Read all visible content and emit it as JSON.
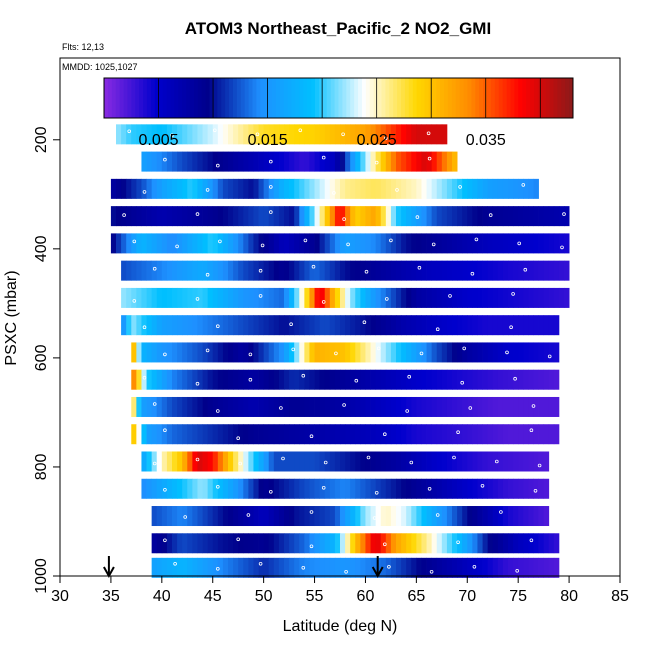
{
  "chart_data": {
    "type": "heatmap",
    "title": "ATOM3 Northeast_Pacific_2 NO2_GMI",
    "flights_label": "Flts: 12,13",
    "mmdd_label": "MMDD: 1025,1027",
    "xlabel": "Latitude (deg N)",
    "ylabel": "PSXC (mbar)",
    "xlim": [
      30,
      85
    ],
    "ylim": [
      1000,
      50
    ],
    "y_reversed": true,
    "x_ticks": [
      30,
      35,
      40,
      45,
      50,
      55,
      60,
      65,
      70,
      75,
      80,
      85
    ],
    "y_ticks": [
      200,
      400,
      600,
      800,
      1000
    ],
    "colorbar": {
      "range": [
        0.0,
        0.043
      ],
      "ticks": [
        0.005,
        0.015,
        0.025,
        0.035
      ],
      "tick_labels": [
        "0.005",
        "0.015",
        "0.025",
        "0.035"
      ],
      "colors": [
        "#8a2be2",
        "#0000cd",
        "#00008b",
        "#1e90ff",
        "#00bfff",
        "#ffffff",
        "#ffd700",
        "#ff8c00",
        "#ff0000",
        "#8b1a1a"
      ]
    },
    "arrows_lat": [
      34.8,
      61.2
    ],
    "grid": false,
    "rows": [
      {
        "p": 190,
        "lat": [
          35.5,
          68
        ],
        "k": [
          [
            35.5,
            0.022
          ],
          [
            37,
            0.02
          ],
          [
            40,
            0.019
          ],
          [
            45,
            0.023
          ],
          [
            50,
            0.028
          ],
          [
            55,
            0.029
          ],
          [
            60,
            0.032
          ],
          [
            63,
            0.037
          ],
          [
            65,
            0.04
          ],
          [
            68,
            0.04
          ]
        ]
      },
      {
        "p": 240,
        "lat": [
          38,
          69
        ],
        "k": [
          [
            38,
            0.016
          ],
          [
            42,
            0.012
          ],
          [
            46,
            0.009
          ],
          [
            50,
            0.006
          ],
          [
            54,
            0.003
          ],
          [
            57,
            0.006
          ],
          [
            60,
            0.022
          ],
          [
            63,
            0.035
          ],
          [
            66,
            0.04
          ],
          [
            69,
            0.03
          ]
        ]
      },
      {
        "p": 290,
        "lat": [
          35,
          77
        ],
        "k": [
          [
            35,
            0.008
          ],
          [
            38,
            0.012
          ],
          [
            40,
            0.016
          ],
          [
            43,
            0.02
          ],
          [
            46,
            0.012
          ],
          [
            49,
            0.01
          ],
          [
            52,
            0.018
          ],
          [
            55,
            0.022
          ],
          [
            58,
            0.026
          ],
          [
            61,
            0.027
          ],
          [
            65,
            0.025
          ],
          [
            69,
            0.02
          ],
          [
            72,
            0.016
          ],
          [
            77,
            0.014
          ]
        ]
      },
      {
        "p": 340,
        "lat": [
          35,
          80
        ],
        "k": [
          [
            35,
            0.01
          ],
          [
            40,
            0.007
          ],
          [
            45,
            0.009
          ],
          [
            50,
            0.012
          ],
          [
            53,
            0.01
          ],
          [
            56,
            0.028
          ],
          [
            57.5,
            0.039
          ],
          [
            59,
            0.029
          ],
          [
            61,
            0.032
          ],
          [
            63,
            0.02
          ],
          [
            67,
            0.012
          ],
          [
            72,
            0.009
          ],
          [
            76,
            0.008
          ],
          [
            80,
            0.007
          ]
        ]
      },
      {
        "p": 390,
        "lat": [
          35,
          80
        ],
        "k": [
          [
            35,
            0.009
          ],
          [
            38,
            0.018
          ],
          [
            41,
            0.014
          ],
          [
            45,
            0.02
          ],
          [
            49,
            0.011
          ],
          [
            52,
            0.006
          ],
          [
            55,
            0.009
          ],
          [
            58,
            0.016
          ],
          [
            61,
            0.014
          ],
          [
            64,
            0.01
          ],
          [
            68,
            0.008
          ],
          [
            72,
            0.006
          ],
          [
            76,
            0.005
          ],
          [
            80,
            0.004
          ]
        ]
      },
      {
        "p": 440,
        "lat": [
          36,
          80
        ],
        "k": [
          [
            36,
            0.012
          ],
          [
            40,
            0.014
          ],
          [
            44,
            0.017
          ],
          [
            48,
            0.012
          ],
          [
            52,
            0.009
          ],
          [
            55,
            0.013
          ],
          [
            58,
            0.01
          ],
          [
            62,
            0.008
          ],
          [
            66,
            0.006
          ],
          [
            70,
            0.005
          ],
          [
            74,
            0.004
          ],
          [
            80,
            0.003
          ]
        ]
      },
      {
        "p": 490,
        "lat": [
          36,
          80
        ],
        "k": [
          [
            36,
            0.022
          ],
          [
            40,
            0.019
          ],
          [
            44,
            0.02
          ],
          [
            48,
            0.015
          ],
          [
            52,
            0.013
          ],
          [
            54,
            0.026
          ],
          [
            55.5,
            0.04
          ],
          [
            57,
            0.03
          ],
          [
            58.5,
            0.022
          ],
          [
            61,
            0.015
          ],
          [
            65,
            0.008
          ],
          [
            70,
            0.005
          ],
          [
            75,
            0.004
          ],
          [
            80,
            0.003
          ]
        ]
      },
      {
        "p": 540,
        "lat": [
          36,
          79
        ],
        "k": [
          [
            36,
            0.013
          ],
          [
            37,
            0.022
          ],
          [
            40,
            0.016
          ],
          [
            44,
            0.014
          ],
          [
            48,
            0.012
          ],
          [
            52,
            0.01
          ],
          [
            56,
            0.012
          ],
          [
            60,
            0.01
          ],
          [
            64,
            0.007
          ],
          [
            68,
            0.005
          ],
          [
            72,
            0.004
          ],
          [
            79,
            0.004
          ]
        ]
      },
      {
        "p": 590,
        "lat": [
          37,
          79
        ],
        "k": [
          [
            37,
            0.034
          ],
          [
            38,
            0.018
          ],
          [
            40,
            0.015
          ],
          [
            44,
            0.012
          ],
          [
            48,
            0.008
          ],
          [
            52,
            0.015
          ],
          [
            55,
            0.031
          ],
          [
            58,
            0.03
          ],
          [
            61,
            0.024
          ],
          [
            64,
            0.018
          ],
          [
            67,
            0.012
          ],
          [
            70,
            0.008
          ],
          [
            74,
            0.005
          ],
          [
            79,
            0.004
          ]
        ]
      },
      {
        "p": 640,
        "lat": [
          37,
          79
        ],
        "k": [
          [
            37,
            0.036
          ],
          [
            38.5,
            0.02
          ],
          [
            41,
            0.014
          ],
          [
            45,
            0.01
          ],
          [
            49,
            0.008
          ],
          [
            53,
            0.011
          ],
          [
            57,
            0.009
          ],
          [
            61,
            0.007
          ],
          [
            65,
            0.005
          ],
          [
            69,
            0.004
          ],
          [
            73,
            0.003
          ],
          [
            79,
            0.002
          ]
        ]
      },
      {
        "p": 690,
        "lat": [
          37,
          79
        ],
        "k": [
          [
            37,
            0.03
          ],
          [
            38,
            0.016
          ],
          [
            41,
            0.012
          ],
          [
            45,
            0.009
          ],
          [
            49,
            0.007
          ],
          [
            53,
            0.009
          ],
          [
            57,
            0.008
          ],
          [
            61,
            0.006
          ],
          [
            65,
            0.004
          ],
          [
            69,
            0.003
          ],
          [
            73,
            0.002
          ],
          [
            79,
            0.002
          ]
        ]
      },
      {
        "p": 740,
        "lat": [
          37,
          79
        ],
        "k": [
          [
            37,
            0.032
          ],
          [
            38.5,
            0.016
          ],
          [
            41,
            0.013
          ],
          [
            45,
            0.011
          ],
          [
            49,
            0.009
          ],
          [
            53,
            0.008
          ],
          [
            57,
            0.007
          ],
          [
            61,
            0.006
          ],
          [
            65,
            0.004
          ],
          [
            70,
            0.003
          ],
          [
            74,
            0.002
          ],
          [
            79,
            0.002
          ]
        ]
      },
      {
        "p": 790,
        "lat": [
          38,
          78
        ],
        "k": [
          [
            38,
            0.016
          ],
          [
            40,
            0.025
          ],
          [
            42,
            0.03
          ],
          [
            43.5,
            0.04
          ],
          [
            45,
            0.038
          ],
          [
            47,
            0.028
          ],
          [
            49,
            0.02
          ],
          [
            51,
            0.012
          ],
          [
            55,
            0.012
          ],
          [
            59,
            0.01
          ],
          [
            63,
            0.008
          ],
          [
            67,
            0.005
          ],
          [
            72,
            0.003
          ],
          [
            78,
            0.002
          ]
        ]
      },
      {
        "p": 840,
        "lat": [
          38,
          78
        ],
        "k": [
          [
            38,
            0.014
          ],
          [
            41,
            0.018
          ],
          [
            44,
            0.022
          ],
          [
            47,
            0.016
          ],
          [
            50,
            0.009
          ],
          [
            54,
            0.012
          ],
          [
            58,
            0.014
          ],
          [
            62,
            0.011
          ],
          [
            66,
            0.008
          ],
          [
            70,
            0.005
          ],
          [
            74,
            0.003
          ],
          [
            78,
            0.002
          ]
        ]
      },
      {
        "p": 890,
        "lat": [
          39,
          78
        ],
        "k": [
          [
            39,
            0.012
          ],
          [
            42,
            0.014
          ],
          [
            46,
            0.01
          ],
          [
            50,
            0.006
          ],
          [
            53,
            0.01
          ],
          [
            57,
            0.012
          ],
          [
            60,
            0.022
          ],
          [
            62,
            0.025
          ],
          [
            64,
            0.023
          ],
          [
            67,
            0.016
          ],
          [
            70,
            0.01
          ],
          [
            74,
            0.004
          ],
          [
            78,
            0.002
          ]
        ]
      },
      {
        "p": 940,
        "lat": [
          39,
          79
        ],
        "k": [
          [
            39,
            0.008
          ],
          [
            42,
            0.012
          ],
          [
            46,
            0.01
          ],
          [
            50,
            0.009
          ],
          [
            54,
            0.013
          ],
          [
            57,
            0.018
          ],
          [
            59,
            0.03
          ],
          [
            61,
            0.04
          ],
          [
            63,
            0.032
          ],
          [
            66,
            0.026
          ],
          [
            69,
            0.019
          ],
          [
            72,
            0.01
          ],
          [
            75,
            0.006
          ],
          [
            79,
            0.003
          ]
        ]
      },
      {
        "p": 985,
        "lat": [
          39,
          79
        ],
        "k": [
          [
            39,
            0.016
          ],
          [
            42,
            0.018
          ],
          [
            46,
            0.014
          ],
          [
            50,
            0.011
          ],
          [
            54,
            0.014
          ],
          [
            58,
            0.015
          ],
          [
            62,
            0.013
          ],
          [
            66,
            0.009
          ],
          [
            70,
            0.006
          ],
          [
            74,
            0.003
          ],
          [
            79,
            0.002
          ]
        ]
      }
    ]
  }
}
